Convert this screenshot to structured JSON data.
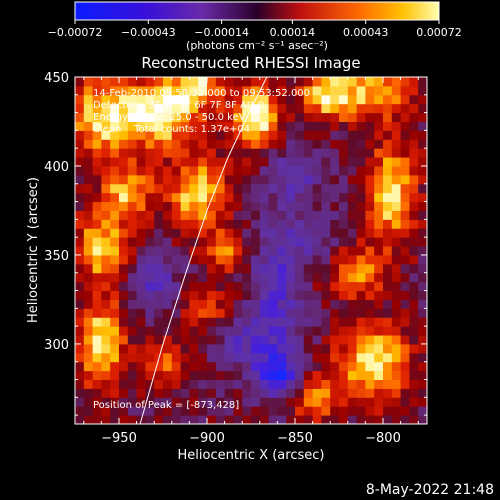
{
  "chart_data": {
    "type": "heatmap",
    "title": "Reconstructed RHESSI Image",
    "xlabel": "Heliocentric X (arcsec)",
    "ylabel": "Heliocentric Y (arcsec)",
    "xlim": [
      -975,
      -775
    ],
    "ylim": [
      255,
      450
    ],
    "xticks": [
      -950,
      -900,
      -850,
      -800
    ],
    "xtick_labels": [
      "−950",
      "−900",
      "−850",
      "−800"
    ],
    "yticks": [
      300,
      350,
      400,
      450
    ],
    "ytick_labels": [
      "300",
      "350",
      "400",
      "450"
    ],
    "colorbar": {
      "min": -0.00072,
      "max": 0.00072,
      "ticks": [
        -0.00072,
        -0.00043,
        -0.00014,
        0.00014,
        0.00043,
        0.00072
      ],
      "tick_labels": [
        "−0.00072",
        "−0.00043",
        "−0.00014",
        "0.00014",
        "0.00043",
        "0.00072"
      ],
      "unit_label": "(photons cm⁻² s⁻¹ asec⁻²)"
    },
    "annotations": {
      "time_range": "14-Feb-2010 09:50:32.000 to 09:53:52.000",
      "detectors": "Detectors: 3F 4F 5F 6F 7F 8F Att 0",
      "energy": "Energy Range: 25.0 - 50.0 keV",
      "method": "Clean    Total counts: 1.37e+04",
      "peak": "Position of Peak = [-873,428]"
    },
    "limb": [
      [
        -938,
        255
      ],
      [
        -925,
        300
      ],
      [
        -912,
        340
      ],
      [
        -900,
        375
      ],
      [
        -888,
        405
      ],
      [
        -876,
        430
      ],
      [
        -866,
        450
      ]
    ],
    "blobs": [
      {
        "x": -958,
        "y": 428,
        "sx": 14,
        "sy": 16,
        "v": 0.9
      },
      {
        "x": -925,
        "y": 430,
        "sx": 14,
        "sy": 13,
        "v": 1.0
      },
      {
        "x": -905,
        "y": 445,
        "sx": 10,
        "sy": 8,
        "v": 0.8
      },
      {
        "x": -873,
        "y": 428,
        "sx": 9,
        "sy": 12,
        "v": 1.1
      },
      {
        "x": -830,
        "y": 440,
        "sx": 12,
        "sy": 10,
        "v": 0.9
      },
      {
        "x": -800,
        "y": 442,
        "sx": 12,
        "sy": 10,
        "v": 0.7
      },
      {
        "x": -905,
        "y": 385,
        "sx": 12,
        "sy": 14,
        "v": 0.85
      },
      {
        "x": -945,
        "y": 385,
        "sx": 10,
        "sy": 10,
        "v": 0.75
      },
      {
        "x": -960,
        "y": 355,
        "sx": 10,
        "sy": 14,
        "v": 0.8
      },
      {
        "x": -890,
        "y": 352,
        "sx": 8,
        "sy": 8,
        "v": 0.6
      },
      {
        "x": -960,
        "y": 300,
        "sx": 9,
        "sy": 18,
        "v": 0.9
      },
      {
        "x": -925,
        "y": 290,
        "sx": 10,
        "sy": 10,
        "v": 0.55
      },
      {
        "x": -795,
        "y": 385,
        "sx": 10,
        "sy": 20,
        "v": 0.85
      },
      {
        "x": -815,
        "y": 340,
        "sx": 12,
        "sy": 10,
        "v": 0.6
      },
      {
        "x": -805,
        "y": 290,
        "sx": 14,
        "sy": 15,
        "v": 0.95
      },
      {
        "x": -838,
        "y": 270,
        "sx": 10,
        "sy": 10,
        "v": 0.6
      },
      {
        "x": -900,
        "y": 320,
        "sx": 10,
        "sy": 10,
        "v": 0.4
      },
      {
        "x": -860,
        "y": 330,
        "sx": 10,
        "sy": 30,
        "v": -0.55
      },
      {
        "x": -860,
        "y": 282,
        "sx": 8,
        "sy": 8,
        "v": -0.9
      },
      {
        "x": -930,
        "y": 335,
        "sx": 10,
        "sy": 10,
        "v": -0.45
      },
      {
        "x": -850,
        "y": 395,
        "sx": 10,
        "sy": 10,
        "v": -0.45
      },
      {
        "x": -878,
        "y": 300,
        "sx": 12,
        "sy": 10,
        "v": -0.45
      },
      {
        "x": -840,
        "y": 360,
        "sx": 10,
        "sy": 10,
        "v": -0.35
      }
    ]
  },
  "footer": {
    "date": "8-May-2022 21:48"
  }
}
